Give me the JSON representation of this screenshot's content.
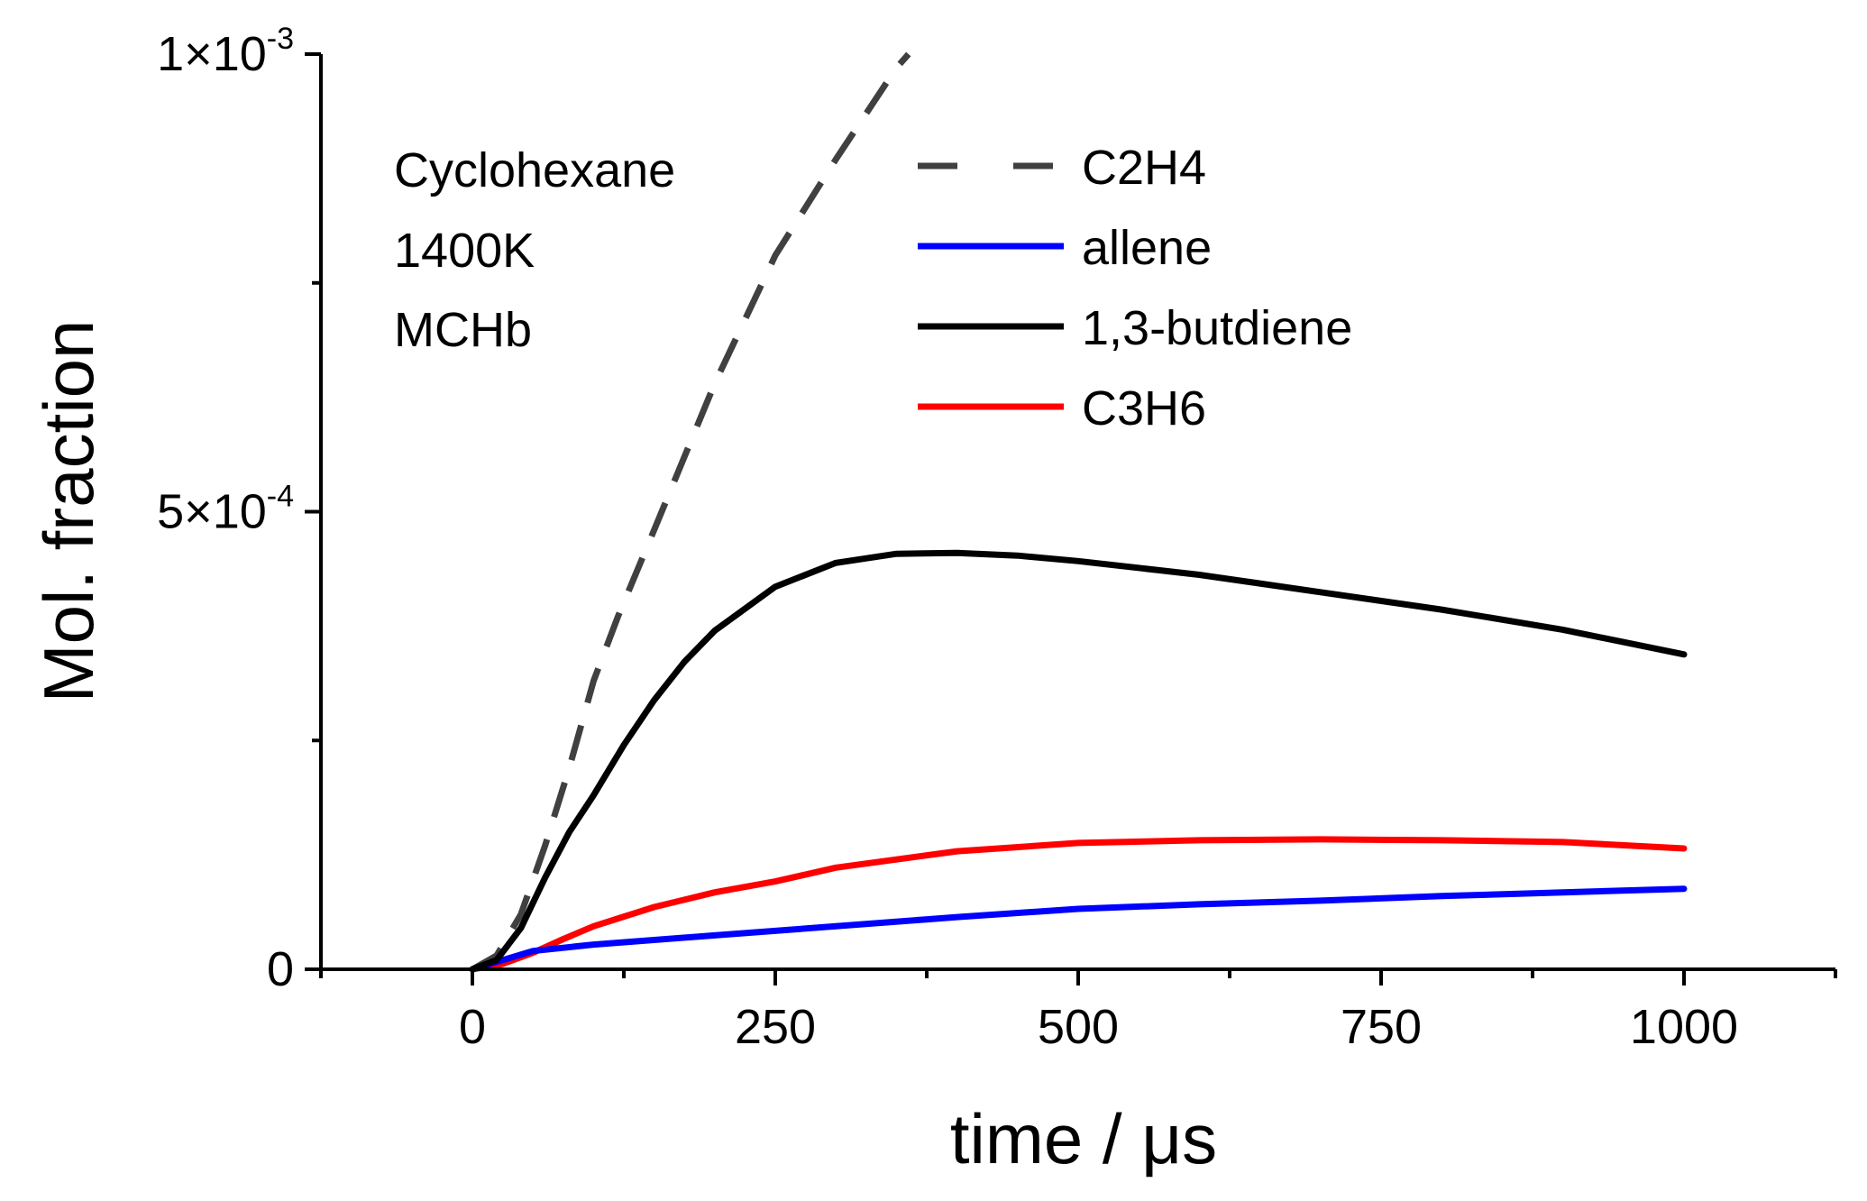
{
  "chart_data": {
    "type": "line",
    "xlabel": "time / μs",
    "ylabel": "Mol. fraction",
    "xlim": [
      -125,
      1125
    ],
    "ylim": [
      0,
      0.001
    ],
    "x_ticks": [
      {
        "value": 0,
        "label": "0"
      },
      {
        "value": 250,
        "label": "250"
      },
      {
        "value": 500,
        "label": "500"
      },
      {
        "value": 750,
        "label": "750"
      },
      {
        "value": 1000,
        "label": "1000"
      }
    ],
    "y_ticks": [
      {
        "value": 0,
        "base": "0",
        "exp": ""
      },
      {
        "value": 0.0005,
        "base": "5×10",
        "exp": "-4"
      },
      {
        "value": 0.001,
        "base": "1×10",
        "exp": "-3"
      }
    ],
    "annotations": [
      "Cyclohexane",
      "1400K",
      "MCHb"
    ],
    "series": [
      {
        "name": "C2H4",
        "color": "#404040",
        "dash": true,
        "x": [
          0,
          20,
          40,
          60,
          80,
          100,
          120,
          150,
          200,
          250,
          300,
          350,
          360
        ],
        "y": [
          0,
          1.5e-05,
          6e-05,
          0.000135,
          0.00022,
          0.000315,
          0.000385,
          0.00048,
          0.00064,
          0.00078,
          0.000885,
          0.000985,
          0.001
        ]
      },
      {
        "name": "allene",
        "color": "#0000ff",
        "dash": false,
        "x": [
          0,
          25,
          50,
          100,
          200,
          300,
          400,
          500,
          600,
          700,
          800,
          900,
          1000
        ],
        "y": [
          0,
          1e-05,
          2e-05,
          2.7e-05,
          3.7e-05,
          4.7e-05,
          5.7e-05,
          6.6e-05,
          7.1e-05,
          7.5e-05,
          8e-05,
          8.4e-05,
          8.8e-05
        ]
      },
      {
        "name": "1,3-butdiene",
        "color": "#000000",
        "dash": false,
        "x": [
          0,
          20,
          40,
          60,
          80,
          100,
          125,
          150,
          175,
          200,
          250,
          300,
          350,
          400,
          450,
          500,
          600,
          700,
          800,
          900,
          1000
        ],
        "y": [
          0,
          1e-05,
          4.5e-05,
          0.0001,
          0.00015,
          0.00019,
          0.000245,
          0.000294,
          0.000336,
          0.00037,
          0.000418,
          0.000444,
          0.000454,
          0.000455,
          0.000452,
          0.000446,
          0.000431,
          0.000412,
          0.000393,
          0.000371,
          0.000344
        ]
      },
      {
        "name": "C3H6",
        "color": "#ff0000",
        "dash": false,
        "x": [
          0,
          25,
          50,
          75,
          100,
          150,
          200,
          250,
          300,
          400,
          500,
          600,
          700,
          800,
          900,
          1000
        ],
        "y": [
          0,
          6e-06,
          1.8e-05,
          3.3e-05,
          4.7e-05,
          6.8e-05,
          8.4e-05,
          9.6e-05,
          0.000111,
          0.000129,
          0.000138,
          0.000141,
          0.000142,
          0.000141,
          0.000139,
          0.000132
        ]
      }
    ]
  }
}
